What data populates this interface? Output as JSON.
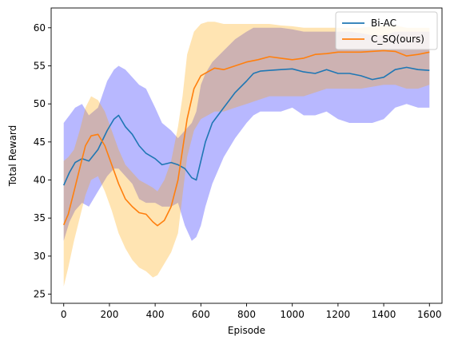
{
  "chart_data": {
    "type": "line",
    "title": "",
    "xlabel": "Episode",
    "ylabel": "Total Reward",
    "xlim": [
      -55,
      1655
    ],
    "ylim": [
      23.8,
      62.6
    ],
    "xticks": [
      0,
      200,
      400,
      600,
      800,
      1000,
      1200,
      1400,
      1600
    ],
    "yticks": [
      25,
      30,
      35,
      40,
      45,
      50,
      55,
      60
    ],
    "grid": false,
    "legend_position": "upper right",
    "series": [
      {
        "name": "Bi-AC",
        "color": "#1f77b4",
        "band_color": "#0000ff",
        "band_opacity": 0.28,
        "x": [
          0,
          25,
          50,
          80,
          110,
          150,
          190,
          220,
          240,
          270,
          300,
          330,
          360,
          400,
          430,
          470,
          500,
          530,
          560,
          580,
          600,
          620,
          650,
          700,
          750,
          800,
          830,
          860,
          900,
          950,
          1000,
          1050,
          1100,
          1150,
          1200,
          1250,
          1300,
          1350,
          1400,
          1450,
          1500,
          1550,
          1600
        ],
        "mean": [
          39.3,
          41.0,
          42.3,
          42.8,
          42.5,
          44.0,
          46.5,
          48.0,
          48.5,
          47.0,
          46.0,
          44.5,
          43.5,
          42.8,
          42.0,
          42.3,
          42.0,
          41.5,
          40.3,
          40.0,
          42.5,
          45.0,
          47.5,
          49.5,
          51.5,
          53.0,
          54.0,
          54.3,
          54.4,
          54.5,
          54.6,
          54.2,
          54.0,
          54.5,
          54.0,
          54.0,
          53.7,
          53.2,
          53.5,
          54.5,
          54.8,
          54.5,
          54.4
        ],
        "upper": [
          47.5,
          48.5,
          49.5,
          50.0,
          48.5,
          49.5,
          53.0,
          54.5,
          55.0,
          54.5,
          53.5,
          52.5,
          52.0,
          49.5,
          47.5,
          46.5,
          45.5,
          46.5,
          47.5,
          49.0,
          52.5,
          54.0,
          55.5,
          57.0,
          58.5,
          59.5,
          60.0,
          60.0,
          60.0,
          60.0,
          59.8,
          59.5,
          59.5,
          59.5,
          59.5,
          59.5,
          59.3,
          59.0,
          59.0,
          59.5,
          59.5,
          59.5,
          59.5
        ],
        "lower": [
          32.0,
          34.5,
          36.0,
          37.0,
          36.5,
          38.5,
          40.5,
          41.5,
          41.5,
          40.5,
          39.5,
          37.5,
          37.0,
          37.0,
          36.5,
          36.5,
          37.0,
          34.0,
          32.0,
          32.5,
          34.0,
          36.5,
          39.5,
          43.0,
          45.5,
          47.5,
          48.5,
          49.0,
          49.0,
          49.0,
          49.5,
          48.5,
          48.5,
          49.0,
          48.0,
          47.5,
          47.5,
          47.5,
          48.0,
          49.5,
          50.0,
          49.5,
          49.5
        ]
      },
      {
        "name": "C_SQ(ours)",
        "color": "#ff7f0e",
        "band_color": "#ffa500",
        "band_opacity": 0.3,
        "x": [
          0,
          20,
          45,
          70,
          95,
          120,
          150,
          180,
          210,
          240,
          270,
          300,
          330,
          360,
          390,
          410,
          440,
          470,
          500,
          520,
          540,
          570,
          600,
          630,
          660,
          700,
          750,
          800,
          850,
          900,
          950,
          1000,
          1050,
          1100,
          1150,
          1200,
          1300,
          1400,
          1450,
          1500,
          1550,
          1600
        ],
        "mean": [
          34.1,
          35.5,
          38.5,
          41.5,
          44.5,
          45.8,
          46.0,
          44.5,
          42.0,
          39.5,
          37.5,
          36.5,
          35.7,
          35.5,
          34.5,
          34.0,
          34.7,
          36.5,
          40.0,
          44.0,
          48.0,
          52.0,
          53.7,
          54.2,
          54.7,
          54.5,
          55.0,
          55.5,
          55.8,
          56.2,
          56.0,
          55.8,
          56.0,
          56.5,
          56.6,
          56.8,
          56.8,
          57.0,
          56.9,
          56.3,
          56.5,
          56.8
        ],
        "upper": [
          42.5,
          43.0,
          44.0,
          46.5,
          49.5,
          51.0,
          50.5,
          49.0,
          46.5,
          44.0,
          42.0,
          41.0,
          40.0,
          39.5,
          39.0,
          38.5,
          40.0,
          42.5,
          47.0,
          51.0,
          56.5,
          59.5,
          60.5,
          60.8,
          60.8,
          60.5,
          60.5,
          60.5,
          60.5,
          60.5,
          60.3,
          60.2,
          60.0,
          60.0,
          60.0,
          60.0,
          60.0,
          60.3,
          60.3,
          60.0,
          60.0,
          60.0
        ],
        "lower": [
          26.0,
          28.5,
          32.0,
          35.0,
          38.0,
          40.0,
          40.5,
          38.5,
          36.0,
          33.0,
          31.0,
          29.5,
          28.5,
          28.0,
          27.2,
          27.5,
          29.0,
          30.5,
          33.0,
          38.0,
          43.0,
          46.5,
          48.0,
          48.5,
          49.0,
          49.0,
          49.5,
          50.0,
          50.5,
          51.0,
          51.0,
          51.0,
          51.0,
          51.5,
          52.0,
          52.0,
          52.0,
          52.5,
          52.5,
          52.0,
          52.0,
          52.5
        ]
      }
    ]
  }
}
